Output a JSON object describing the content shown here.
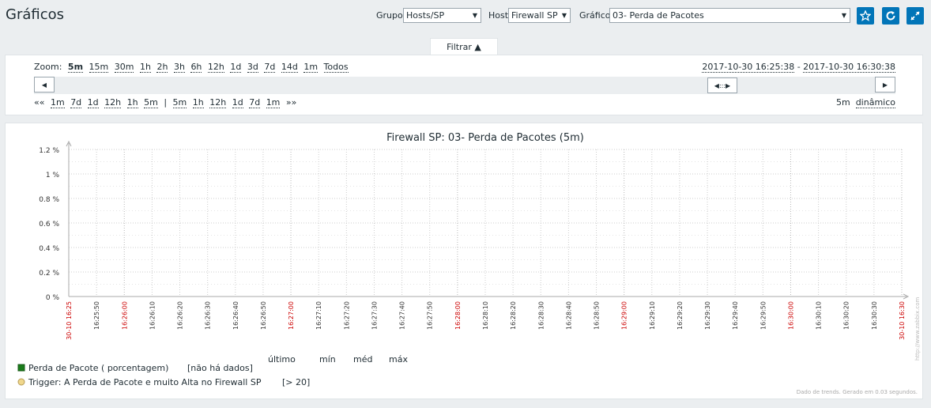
{
  "header": {
    "title": "Gráficos",
    "group_label": "Grupo",
    "group_value": "Hosts/SP",
    "host_label": "Host",
    "host_value": "Firewall SP",
    "graph_label": "Gráfico",
    "graph_value": "03- Perda de Pacotes"
  },
  "filter": {
    "tab_label": "Filtrar ▲",
    "zoom_label": "Zoom:",
    "zoom_options": [
      "5m",
      "15m",
      "30m",
      "1h",
      "2h",
      "3h",
      "6h",
      "12h",
      "1d",
      "3d",
      "7d",
      "14d",
      "1m",
      "Todos"
    ],
    "period_from": "2017-10-30 16:25:38",
    "period_sep": " - ",
    "period_to": "2017-10-30 16:30:38",
    "nav_back_label": "««",
    "nav_back": [
      "1m",
      "7d",
      "1d",
      "12h",
      "1h",
      "5m"
    ],
    "nav_sep": "|",
    "nav_fwd": [
      "5m",
      "1h",
      "12h",
      "1d",
      "7d",
      "1m"
    ],
    "nav_fwd_label": "»»",
    "duration": "5m",
    "dynamic_label": "dinâmico"
  },
  "colors": {
    "accent": "#0275b8",
    "grid": "#cccccc",
    "red_tick": "#cc0000",
    "series": "#1a7c1a",
    "trigger": "#f0d78c"
  },
  "chart_data": {
    "type": "line",
    "title": "Firewall SP: 03- Perda de Pacotes (5m)",
    "y_ticks": [
      "1.2 %",
      "1 %",
      "0.8 %",
      "0.6 %",
      "0.4 %",
      "0.2 %",
      "0 %"
    ],
    "x_ticks": [
      {
        "label": "30-10 16:25",
        "red": true
      },
      {
        "label": "16:25:50",
        "red": false
      },
      {
        "label": "16:26:00",
        "red": true
      },
      {
        "label": "16:26:10",
        "red": false
      },
      {
        "label": "16:26:20",
        "red": false
      },
      {
        "label": "16:26:30",
        "red": false
      },
      {
        "label": "16:26:40",
        "red": false
      },
      {
        "label": "16:26:50",
        "red": false
      },
      {
        "label": "16:27:00",
        "red": true
      },
      {
        "label": "16:27:10",
        "red": false
      },
      {
        "label": "16:27:20",
        "red": false
      },
      {
        "label": "16:27:30",
        "red": false
      },
      {
        "label": "16:27:40",
        "red": false
      },
      {
        "label": "16:27:50",
        "red": false
      },
      {
        "label": "16:28:00",
        "red": true
      },
      {
        "label": "16:28:10",
        "red": false
      },
      {
        "label": "16:28:20",
        "red": false
      },
      {
        "label": "16:28:30",
        "red": false
      },
      {
        "label": "16:28:40",
        "red": false
      },
      {
        "label": "16:28:50",
        "red": false
      },
      {
        "label": "16:29:00",
        "red": true
      },
      {
        "label": "16:29:10",
        "red": false
      },
      {
        "label": "16:29:20",
        "red": false
      },
      {
        "label": "16:29:30",
        "red": false
      },
      {
        "label": "16:29:40",
        "red": false
      },
      {
        "label": "16:29:50",
        "red": false
      },
      {
        "label": "16:30:00",
        "red": true
      },
      {
        "label": "16:30:10",
        "red": false
      },
      {
        "label": "16:30:20",
        "red": false
      },
      {
        "label": "16:30:30",
        "red": false
      },
      {
        "label": "30-10 16:30",
        "red": true
      }
    ],
    "ylim": [
      0,
      1.2
    ],
    "series": [],
    "legend_headers": [
      "último",
      "mín",
      "méd",
      "máx"
    ],
    "legend_items": [
      {
        "name": "Perda de Pacote ( porcentagem)",
        "value": "[não há dados]",
        "marker": "square"
      },
      {
        "name": "Trigger: A Perda de Pacote e muito Alta no Firewall SP",
        "value": "[> 20]",
        "marker": "circle"
      }
    ],
    "watermark": "http://www.zabbix.com",
    "footer_note": "Dado de trends. Gerado em 0.03 segundos."
  }
}
